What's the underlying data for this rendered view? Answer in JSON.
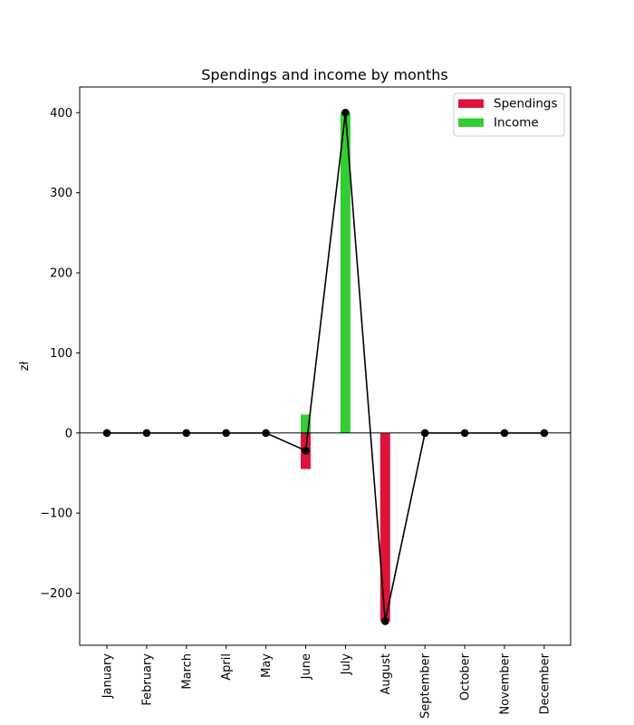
{
  "chart_data": {
    "type": "bar",
    "title": "Spendings and income by months",
    "xlabel": "",
    "ylabel": "zł",
    "ylim": [
      -265,
      432
    ],
    "yticks": [
      400,
      300,
      200,
      100,
      0,
      -100,
      -200
    ],
    "ytick_labels": [
      "400",
      "300",
      "200",
      "100",
      "0",
      "−100",
      "−200"
    ],
    "categories": [
      "January",
      "February",
      "March",
      "April",
      "May",
      "June",
      "July",
      "August",
      "September",
      "October",
      "November",
      "December"
    ],
    "series": [
      {
        "name": "Spendings",
        "kind": "bar",
        "color": "#dc143c",
        "values": [
          0,
          0,
          0,
          0,
          0,
          -45,
          0,
          -235,
          0,
          0,
          0,
          0
        ]
      },
      {
        "name": "Income",
        "kind": "bar",
        "color": "#32cd32",
        "values": [
          0,
          0,
          0,
          0,
          0,
          23,
          400,
          0,
          0,
          0,
          0,
          0
        ]
      },
      {
        "kind": "line",
        "color": "#000000",
        "values": [
          0,
          0,
          0,
          0,
          0,
          -22,
          400,
          -235,
          0,
          0,
          0,
          0
        ]
      }
    ],
    "legend": {
      "placement": "top-right"
    },
    "grid": false,
    "zero_line": true
  }
}
